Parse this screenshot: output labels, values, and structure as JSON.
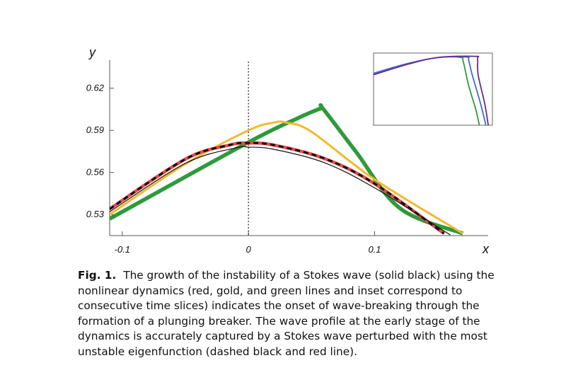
{
  "chart_data": {
    "type": "line",
    "xlabel": "x",
    "ylabel": "y",
    "xlim": [
      -0.11,
      0.19
    ],
    "ylim": [
      0.515,
      0.64
    ],
    "x_ticks": [
      {
        "value": -0.1,
        "label": "-0.1"
      },
      {
        "value": 0,
        "label": "0"
      },
      {
        "value": 0.1,
        "label": "0.1"
      }
    ],
    "y_ticks": [
      {
        "value": 0.53,
        "label": "0.53"
      },
      {
        "value": 0.56,
        "label": "0.56"
      },
      {
        "value": 0.59,
        "label": "0.59"
      },
      {
        "value": 0.62,
        "label": "0.62"
      }
    ],
    "reference_line": {
      "x": 0,
      "style": "dotted"
    },
    "series": [
      {
        "color": "#2e9a3a",
        "style": "solid",
        "x": [
          -0.11,
          0.0,
          0.04,
          0.057,
          0.059,
          0.085,
          0.12,
          0.17
        ],
        "y": [
          0.527,
          0.5815,
          0.599,
          0.6055,
          0.6055,
          0.575,
          0.5345,
          0.5165
        ]
      },
      {
        "color": "#f2b92e",
        "style": "solid",
        "x": [
          -0.11,
          -0.05,
          0.0,
          0.02,
          0.03,
          0.05,
          0.1,
          0.17
        ],
        "y": [
          0.53,
          0.566,
          0.59,
          0.5955,
          0.5955,
          0.589,
          0.555,
          0.5165
        ]
      },
      {
        "color": "#e8494b",
        "style": "solid",
        "x": [
          -0.11,
          -0.05,
          -0.015,
          0.0,
          0.02,
          0.06,
          0.1,
          0.155
        ],
        "y": [
          0.534,
          0.5695,
          0.5795,
          0.581,
          0.5795,
          0.57,
          0.552,
          0.5165
        ]
      },
      {
        "color": "#111111",
        "style": "dashed",
        "x": [
          -0.11,
          -0.05,
          -0.015,
          0.0,
          0.02,
          0.06,
          0.1,
          0.155
        ],
        "y": [
          0.534,
          0.5695,
          0.5795,
          0.581,
          0.5795,
          0.57,
          0.552,
          0.5165
        ]
      },
      {
        "color": "#111111",
        "style": "solid",
        "x": [
          -0.11,
          -0.05,
          -0.01,
          0.0,
          0.02,
          0.06,
          0.1,
          0.16
        ],
        "y": [
          0.532,
          0.5665,
          0.5775,
          0.578,
          0.5765,
          0.567,
          0.549,
          0.5155
        ]
      }
    ],
    "inset": {
      "series": [
        {
          "color": "#2e9a3a",
          "x": [
            0.0,
            0.3,
            0.55,
            0.73,
            0.755,
            0.8,
            0.86,
            0.89
          ],
          "y": [
            0.72,
            0.86,
            0.94,
            0.94,
            0.88,
            0.55,
            0.22,
            0.0
          ]
        },
        {
          "color": "#3b6fd6",
          "x": [
            0.0,
            0.3,
            0.55,
            0.78,
            0.8,
            0.83,
            0.9,
            0.945
          ],
          "y": [
            0.72,
            0.86,
            0.94,
            0.945,
            0.9,
            0.7,
            0.3,
            0.0
          ]
        },
        {
          "color": "#6a2b8e",
          "x": [
            0.0,
            0.3,
            0.55,
            0.855,
            0.875,
            0.88,
            0.935,
            0.965
          ],
          "y": [
            0.7,
            0.85,
            0.94,
            0.955,
            0.92,
            0.7,
            0.3,
            0.0
          ]
        }
      ]
    }
  },
  "caption": {
    "label": "Fig. 1.",
    "text": "The growth of the instability of a Stokes wave (solid black) using the nonlinear dynamics (red, gold, and green lines and inset correspond to consecutive time slices) indicates the onset of wave-breaking through the formation of a plunging breaker. The wave profile at the early stage of the dynamics is accurately captured by a Stokes wave perturbed with the most unstable eigenfunction (dashed black and red line)."
  }
}
